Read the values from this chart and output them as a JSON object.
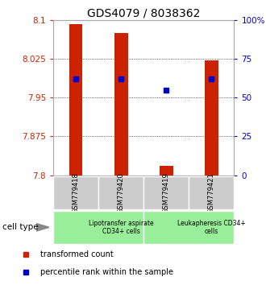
{
  "title": "GDS4079 / 8038362",
  "samples": [
    "GSM779418",
    "GSM779420",
    "GSM779419",
    "GSM779421"
  ],
  "bar_values": [
    8.092,
    8.075,
    7.818,
    8.022
  ],
  "bar_bottom": 7.8,
  "percentile_ranks": [
    62,
    62,
    55,
    62
  ],
  "ylim_left": [
    7.8,
    8.1
  ],
  "yticks_left": [
    7.8,
    7.875,
    7.95,
    8.025,
    8.1
  ],
  "ylim_right": [
    0,
    100
  ],
  "yticks_right": [
    0,
    25,
    50,
    75,
    100
  ],
  "yticklabels_right": [
    "0",
    "25",
    "50",
    "75",
    "100%"
  ],
  "bar_color": "#cc2200",
  "dot_color": "#0000cc",
  "group_labels": [
    "Lipotransfer aspirate\nCD34+ cells",
    "Leukapheresis CD34+\ncells"
  ],
  "group_ranges": [
    [
      0,
      2
    ],
    [
      2,
      4
    ]
  ],
  "group_bg_color": "#99ee99",
  "sample_bg_color": "#cccccc",
  "cell_type_label": "cell type",
  "legend_red_label": "transformed count",
  "legend_blue_label": "percentile rank within the sample",
  "title_fontsize": 10,
  "tick_fontsize": 7.5,
  "bar_width": 0.3
}
